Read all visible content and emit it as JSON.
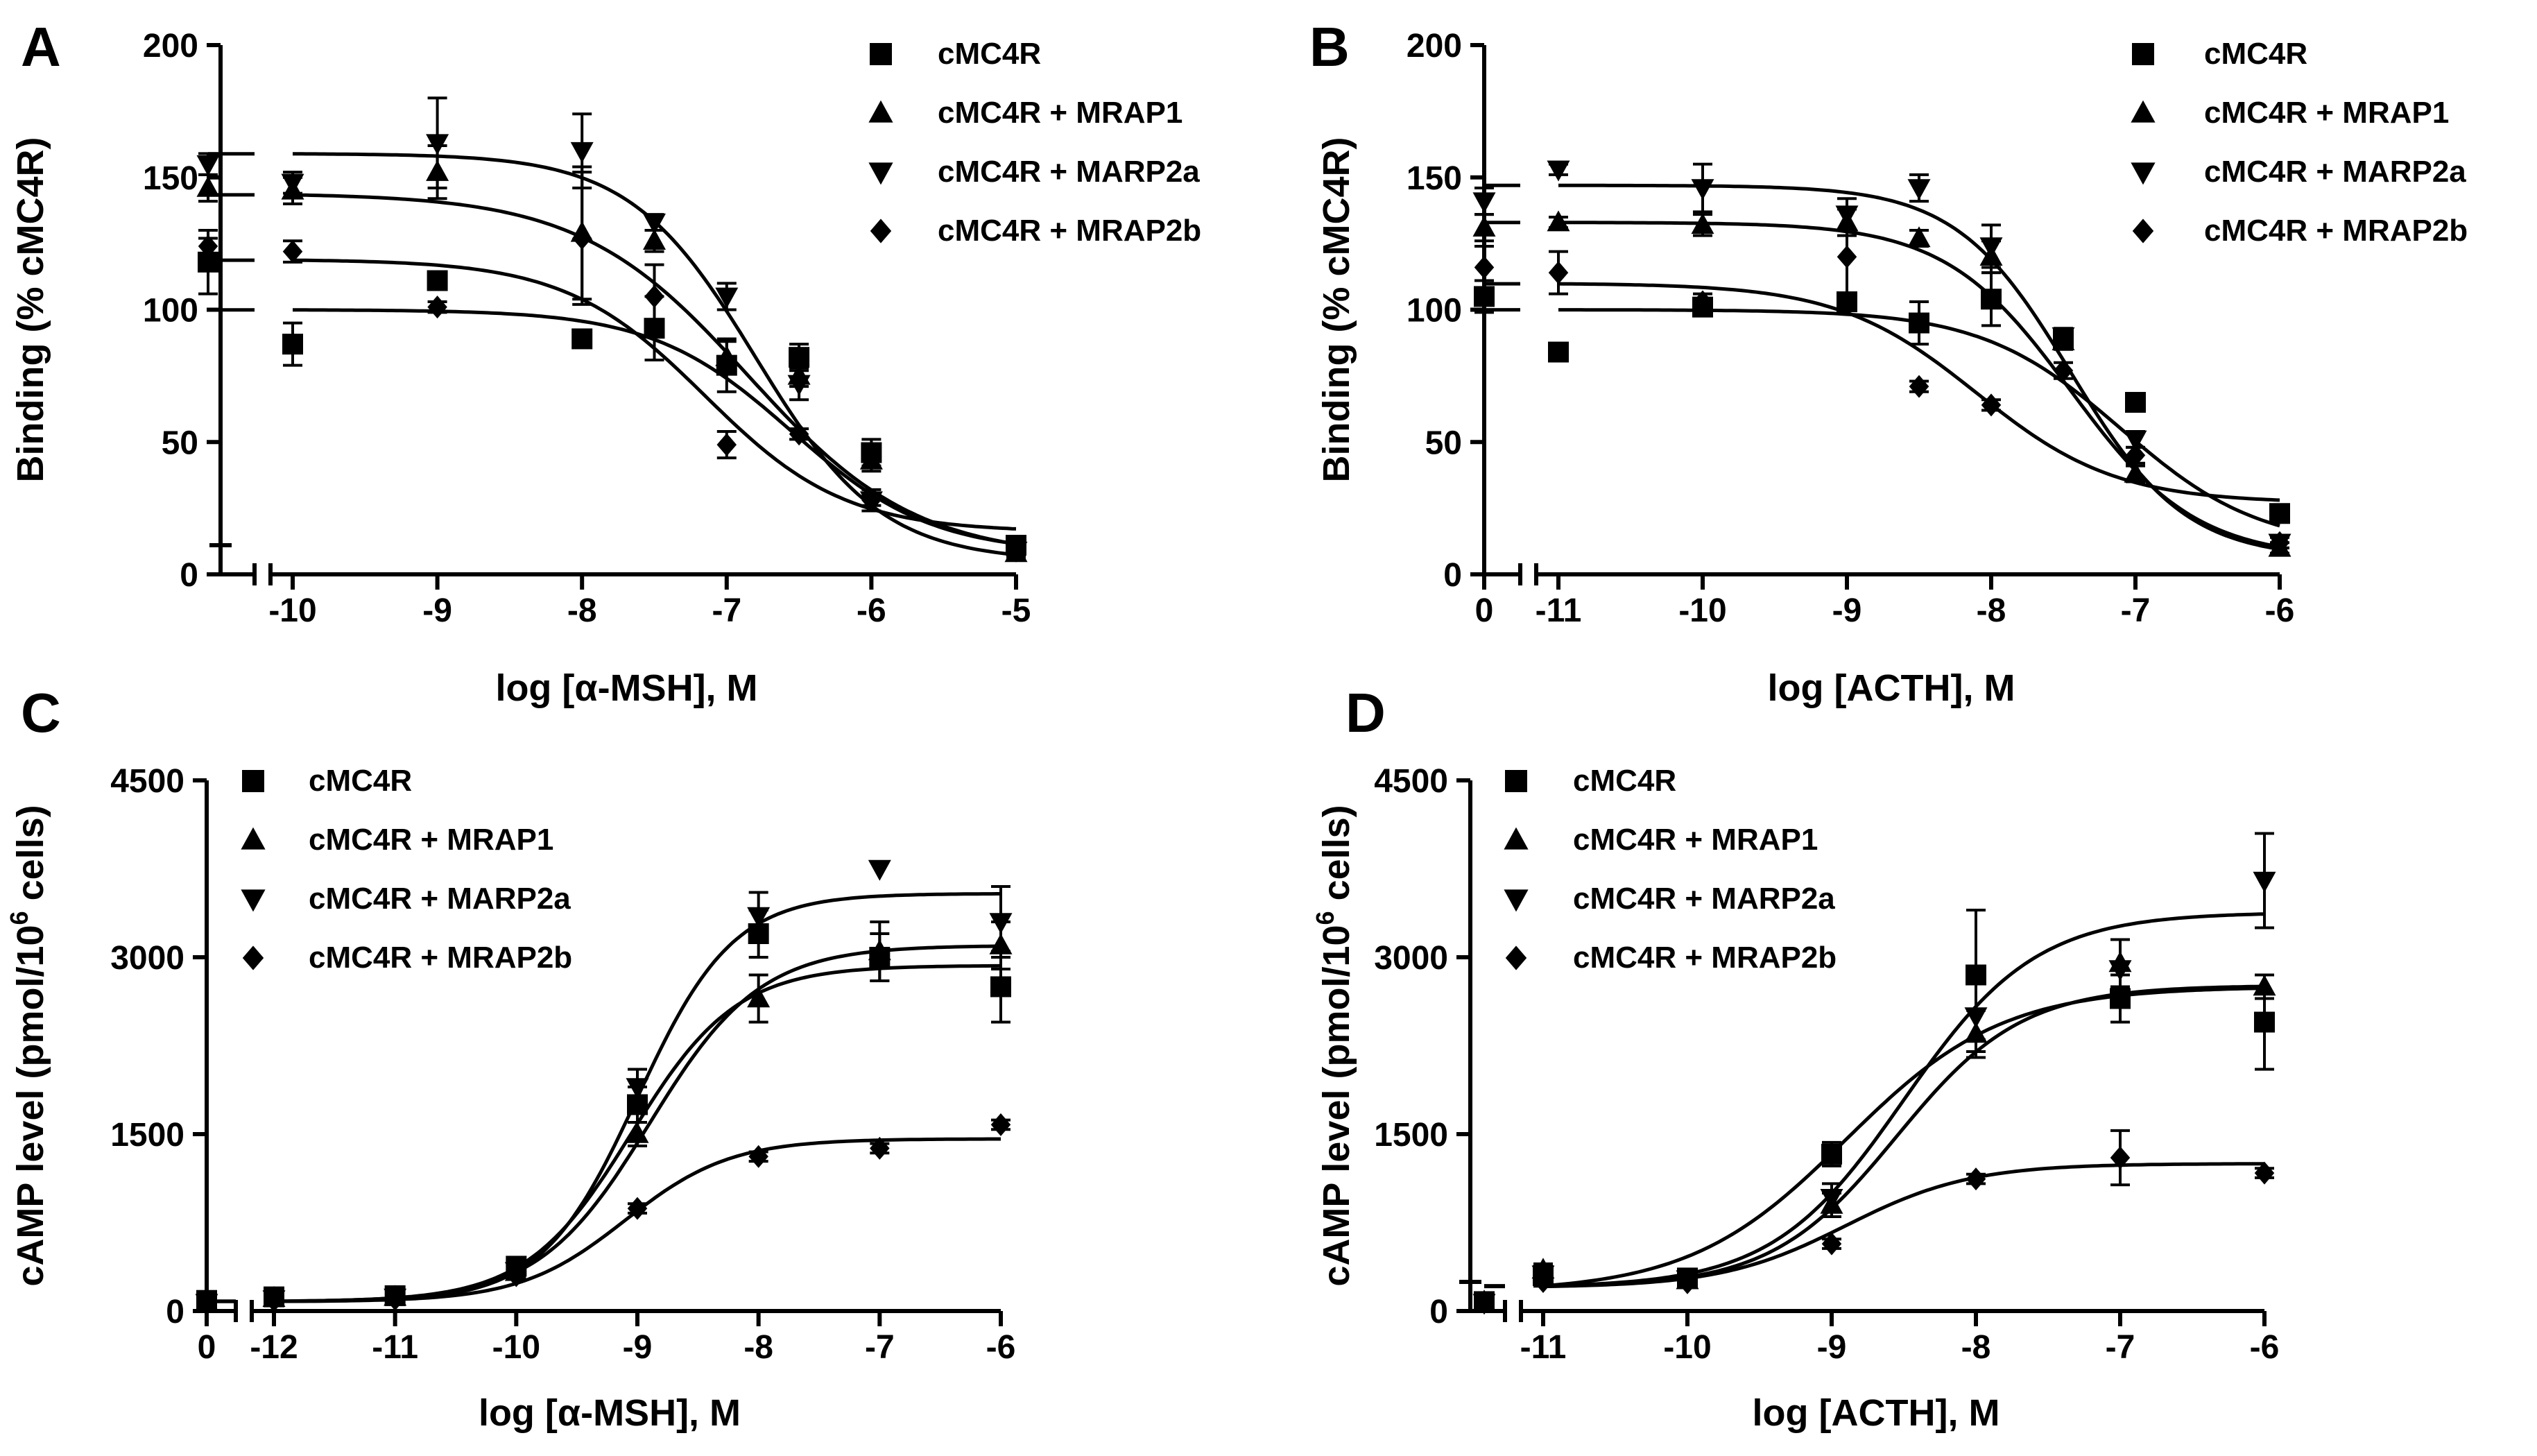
{
  "series_names": [
    "cMC4R",
    "cMC4R + MRAP1",
    "cMC4R + MARP2a",
    "cMC4R + MRAP2b"
  ],
  "chart_data": [
    {
      "panel": "A",
      "type": "scatter",
      "xlabel": "log [α-MSH], M",
      "ylabel": "Binding (% cMC4R)",
      "legend_position": "top-right",
      "xlim": [
        -10,
        -5
      ],
      "ylim": [
        0,
        200
      ],
      "x_ticks": [
        "-10",
        "-9",
        "-8",
        "-7",
        "-6",
        "-5"
      ],
      "y_ticks": [
        "0",
        "50",
        "100",
        "150",
        "200"
      ],
      "broken_axis_zero_point": true,
      "series": [
        {
          "name": "cMC4R",
          "marker": "square",
          "zero_y": 118,
          "zero_err": 12,
          "x": [
            -10,
            -9,
            -8,
            -7.5,
            -7,
            -6.5,
            -6,
            -5
          ],
          "y": [
            87,
            111,
            89,
            93,
            79,
            82,
            46,
            11
          ],
          "err": [
            8,
            3,
            0,
            12,
            10,
            5,
            5,
            3
          ],
          "fit": {
            "bottom": 8,
            "top": 100,
            "logEC50": -6.55,
            "hill": 0.9
          }
        },
        {
          "name": "cMC4R + MRAP1",
          "marker": "triangle-up",
          "zero_y": 146,
          "zero_err": 5,
          "x": [
            -10,
            -9,
            -8,
            -7.5,
            -7,
            -6.5,
            -6,
            -5
          ],
          "y": [
            145,
            152,
            129,
            126,
            82,
            75,
            43,
            8
          ],
          "err": [
            5,
            10,
            25,
            4,
            6,
            4,
            4,
            2
          ],
          "fit": {
            "bottom": 6,
            "top": 144,
            "logEC50": -6.85,
            "hill": 0.75
          }
        },
        {
          "name": "cMC4R + MARP2a",
          "marker": "triangle-down",
          "zero_y": 155,
          "zero_err": 4,
          "x": [
            -10,
            -9,
            -8,
            -7.5,
            -7,
            -6.5,
            -6,
            -5
          ],
          "y": [
            148,
            163,
            160,
            133,
            105,
            72,
            28,
            9
          ],
          "err": [
            4,
            17,
            14,
            3,
            5,
            6,
            4,
            2
          ],
          "fit": {
            "bottom": 5,
            "top": 159,
            "logEC50": -6.8,
            "hill": 1.0
          }
        },
        {
          "name": "cMC4R + MRAP2b",
          "marker": "diamond",
          "zero_y": 124,
          "zero_err": 3,
          "x": [
            -10,
            -9,
            -8,
            -7.5,
            -7,
            -6.5,
            -6,
            -5
          ],
          "y": [
            122,
            101,
            127,
            105,
            49,
            53,
            28,
            10
          ],
          "err": [
            4,
            2,
            25,
            12,
            5,
            2,
            2,
            2
          ],
          "fit": {
            "bottom": 16,
            "top": 119,
            "logEC50": -7.15,
            "hill": 0.9
          }
        }
      ]
    },
    {
      "panel": "B",
      "type": "scatter",
      "xlabel": "log [ACTH], M",
      "ylabel": "Binding (% cMC4R)",
      "legend_position": "top-right",
      "xlim": [
        -11,
        -6
      ],
      "ylim": [
        0,
        200
      ],
      "x_ticks": [
        "-11",
        "-10",
        "-9",
        "-8",
        "-7",
        "-6"
      ],
      "y_ticks": [
        "0",
        "50",
        "100",
        "150",
        "200"
      ],
      "zero_tick_label": "0",
      "broken_axis_zero_point": true,
      "series": [
        {
          "name": "cMC4R",
          "marker": "square",
          "zero_y": 105,
          "zero_err": 6,
          "x": [
            -11,
            -10,
            -9,
            -8.5,
            -8,
            -7.5,
            -7,
            -6
          ],
          "y": [
            84,
            101,
            103,
            95,
            104,
            89,
            65,
            23
          ],
          "err": [
            0,
            2,
            2,
            8,
            10,
            3,
            3,
            3
          ],
          "fit": {
            "bottom": 10,
            "top": 100,
            "logEC50": -7.1,
            "hill": 0.9
          }
        },
        {
          "name": "cMC4R + MRAP1",
          "marker": "triangle-up",
          "zero_y": 131,
          "zero_err": 5,
          "x": [
            -11,
            -10,
            -9,
            -8.5,
            -8,
            -7.5,
            -7,
            -6
          ],
          "y": [
            133,
            132,
            133,
            127,
            120,
            88,
            38,
            10
          ],
          "err": [
            2,
            4,
            5,
            3,
            6,
            3,
            3,
            2
          ],
          "fit": {
            "bottom": 6,
            "top": 133,
            "logEC50": -7.45,
            "hill": 1.0
          }
        },
        {
          "name": "cMC4R + MARP2a",
          "marker": "triangle-down",
          "zero_y": 141,
          "zero_err": 5,
          "x": [
            -11,
            -10,
            -9,
            -8.5,
            -8,
            -7.5,
            -7,
            -6
          ],
          "y": [
            153,
            146,
            136,
            146,
            124,
            90,
            51,
            12
          ],
          "err": [
            2,
            9,
            6,
            5,
            8,
            3,
            3,
            2
          ],
          "fit": {
            "bottom": 6,
            "top": 147,
            "logEC50": -7.45,
            "hill": 1.1
          }
        },
        {
          "name": "cMC4R + MRAP2b",
          "marker": "diamond",
          "zero_y": 116,
          "zero_err": 8,
          "x": [
            -11,
            -10,
            -9,
            -8.5,
            -8,
            -7.5,
            -7,
            -6
          ],
          "y": [
            114,
            103,
            120,
            71,
            64,
            77,
            45,
            12
          ],
          "err": [
            8,
            3,
            18,
            2,
            2,
            3,
            3,
            2
          ],
          "fit": {
            "bottom": 27,
            "top": 110,
            "logEC50": -8.1,
            "hill": 0.9
          }
        }
      ]
    },
    {
      "panel": "C",
      "type": "scatter",
      "xlabel": "log [α-MSH], M",
      "ylabel_main": "cAMP level (pmol/10",
      "ylabel_sup": "6",
      "ylabel_end": " cells)",
      "legend_position": "top-left",
      "xlim": [
        -12,
        -6
      ],
      "ylim": [
        0,
        4500
      ],
      "x_ticks": [
        "-12",
        "-11",
        "-10",
        "-9",
        "-8",
        "-7",
        "-6"
      ],
      "y_ticks": [
        "0",
        "1500",
        "3000",
        "4500"
      ],
      "zero_tick_label": "0",
      "broken_axis_zero_point": true,
      "series": [
        {
          "name": "cMC4R",
          "marker": "square",
          "zero_y": 90,
          "zero_err": 30,
          "x": [
            -12,
            -11,
            -10,
            -9,
            -8,
            -7,
            -6
          ],
          "y": [
            120,
            130,
            380,
            1750,
            3200,
            3000,
            2750
          ],
          "err": [
            30,
            30,
            60,
            150,
            200,
            200,
            300
          ],
          "fit": {
            "bottom": 80,
            "top": 2930,
            "logEC50": -9.05,
            "hill": 1.0
          }
        },
        {
          "name": "cMC4R + MRAP1",
          "marker": "triangle-up",
          "zero_y": 80,
          "zero_err": 20,
          "x": [
            -12,
            -11,
            -10,
            -9,
            -8,
            -7,
            -6
          ],
          "y": [
            110,
            120,
            330,
            1500,
            2650,
            3050,
            3100
          ],
          "err": [
            20,
            20,
            40,
            100,
            200,
            250,
            200
          ],
          "fit": {
            "bottom": 80,
            "top": 3100,
            "logEC50": -8.9,
            "hill": 0.95
          }
        },
        {
          "name": "cMC4R + MARP2a",
          "marker": "triangle-down",
          "zero_y": 70,
          "zero_err": 20,
          "x": [
            -12,
            -11,
            -10,
            -9,
            -8,
            -7,
            -6
          ],
          "y": [
            100,
            115,
            340,
            1900,
            3350,
            3750,
            3300
          ],
          "err": [
            20,
            20,
            40,
            150,
            200,
            0,
            300
          ],
          "fit": {
            "bottom": 80,
            "top": 3540,
            "logEC50": -9.0,
            "hill": 1.1
          }
        },
        {
          "name": "cMC4R + MRAP2b",
          "marker": "diamond",
          "zero_y": 60,
          "zero_err": 15,
          "x": [
            -12,
            -11,
            -10,
            -9,
            -8,
            -7,
            -6
          ],
          "y": [
            90,
            100,
            300,
            870,
            1310,
            1380,
            1580
          ],
          "err": [
            15,
            15,
            30,
            40,
            40,
            40,
            40
          ],
          "fit": {
            "bottom": 80,
            "top": 1460,
            "logEC50": -9.1,
            "hill": 1.0
          }
        }
      ]
    },
    {
      "panel": "D",
      "type": "scatter",
      "xlabel": "log [ACTH], M",
      "ylabel_main": "cAMP level (pmol/10",
      "ylabel_sup": "6",
      "ylabel_end": " cells)",
      "legend_position": "top-left",
      "xlim": [
        -11,
        -6
      ],
      "ylim": [
        0,
        4500
      ],
      "x_ticks": [
        "-11",
        "-10",
        "-9",
        "-8",
        "-7",
        "-6"
      ],
      "y_ticks": [
        "0",
        "1500",
        "3000",
        "4500"
      ],
      "broken_axis_zero_point": true,
      "series": [
        {
          "name": "cMC4R",
          "marker": "square",
          "zero_y": 80,
          "zero_err": 30,
          "x": [
            -11,
            -10,
            -9,
            -8,
            -7,
            -6
          ],
          "y": [
            300,
            280,
            1330,
            2850,
            2650,
            2450
          ],
          "err": [
            60,
            40,
            100,
            550,
            200,
            400
          ],
          "fit": {
            "bottom": 160,
            "top": 2750,
            "logEC50": -8.9,
            "hill": 0.8
          }
        },
        {
          "name": "cMC4R + MRAP1",
          "marker": "triangle-up",
          "zero_y": 80,
          "zero_err": 20,
          "x": [
            -11,
            -10,
            -9,
            -8,
            -7,
            -6
          ],
          "y": [
            350,
            260,
            900,
            2350,
            2950,
            2750
          ],
          "err": [
            50,
            40,
            100,
            200,
            200,
            100
          ],
          "fit": {
            "bottom": 200,
            "top": 2760,
            "logEC50": -8.55,
            "hill": 1.0
          }
        },
        {
          "name": "cMC4R + MARP2a",
          "marker": "triangle-down",
          "zero_y": 70,
          "zero_err": 20,
          "x": [
            -11,
            -10,
            -9,
            -8,
            -7,
            -6
          ],
          "y": [
            310,
            270,
            960,
            2500,
            2900,
            3650
          ],
          "err": [
            50,
            40,
            120,
            300,
            250,
            400
          ],
          "fit": {
            "bottom": 200,
            "top": 3380,
            "logEC50": -8.5,
            "hill": 0.95
          }
        },
        {
          "name": "cMC4R + MRAP2b",
          "marker": "diamond",
          "zero_y": 70,
          "zero_err": 15,
          "x": [
            -11,
            -10,
            -9,
            -8,
            -7,
            -6
          ],
          "y": [
            250,
            240,
            570,
            1120,
            1300,
            1170
          ],
          "err": [
            40,
            30,
            40,
            40,
            230,
            40
          ],
          "fit": {
            "bottom": 200,
            "top": 1250,
            "logEC50": -8.9,
            "hill": 1.0
          }
        }
      ]
    }
  ]
}
